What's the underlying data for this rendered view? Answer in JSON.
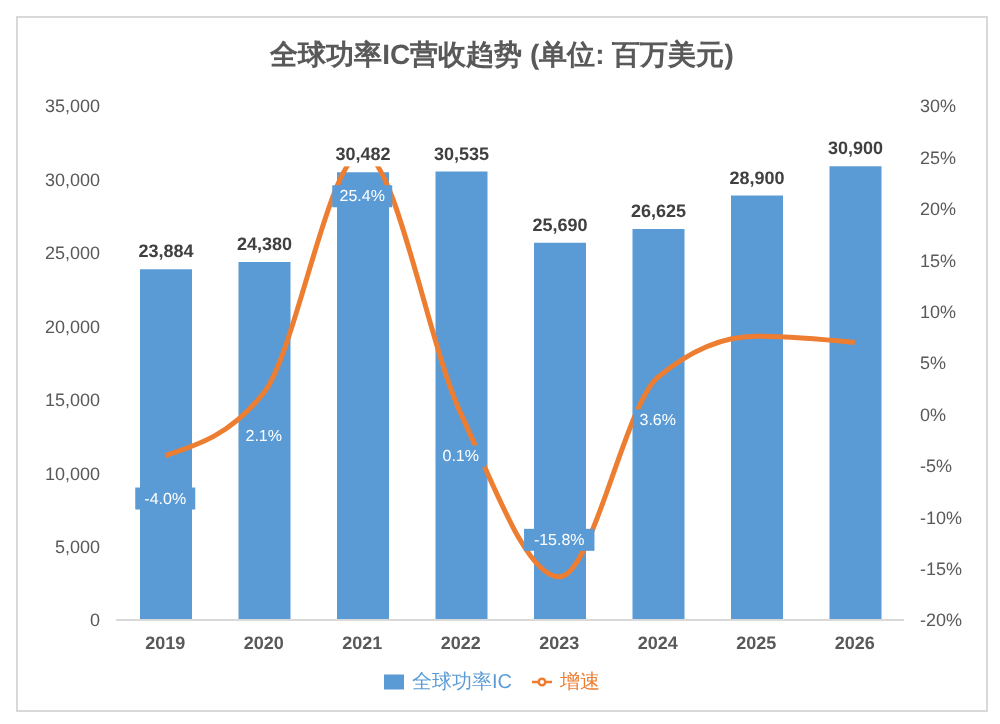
{
  "chart_data": {
    "type": "bar",
    "title": "全球功率IC营收趋势 (单位: 百万美元)",
    "categories": [
      "2019",
      "2020",
      "2021",
      "2022",
      "2023",
      "2024",
      "2025",
      "2026"
    ],
    "series": [
      {
        "name": "全球功率IC",
        "color": "#5b9bd5",
        "values": [
          23884,
          24380,
          30482,
          30535,
          25690,
          26625,
          28900,
          30900
        ],
        "value_labels": [
          "23,884",
          "24,380",
          "30,482",
          "30,535",
          "25,690",
          "26,625",
          "28,900",
          "30,900"
        ]
      },
      {
        "name": "增速",
        "type": "line",
        "axis": "y2",
        "color": "#ed7d31",
        "values": [
          -4.0,
          2.1,
          25.4,
          0.1,
          -15.8,
          3.6,
          7.6,
          7.0
        ],
        "value_labels": [
          "-4.0%",
          "2.1%",
          "25.4%",
          "0.1%",
          "-15.8%",
          "3.6%",
          null,
          null
        ]
      }
    ],
    "ylim": [
      0,
      35000
    ],
    "yticks": [
      0,
      {
        "value": 5000,
        "label": "5,000"
      },
      {
        "value": 10000,
        "label": "10,000"
      },
      {
        "value": 15000,
        "label": "15,000"
      },
      {
        "value": 20000,
        "label": "20,000"
      },
      {
        "value": 25000,
        "label": "25,000"
      },
      {
        "value": 30000,
        "label": "30,000"
      },
      {
        "value": 35000,
        "label": "35,000"
      }
    ],
    "y2lim": [
      -20,
      30
    ],
    "y2ticks": [
      {
        "value": -20,
        "label": "-20%"
      },
      {
        "value": -15,
        "label": "-15%"
      },
      {
        "value": -10,
        "label": "-10%"
      },
      {
        "value": -5,
        "label": "-5%"
      },
      {
        "value": 0,
        "label": "0%"
      },
      {
        "value": 5,
        "label": "5%"
      },
      {
        "value": 10,
        "label": "10%"
      },
      {
        "value": 15,
        "label": "15%"
      },
      {
        "value": 20,
        "label": "20%"
      },
      {
        "value": 25,
        "label": "25%"
      },
      {
        "value": 30,
        "label": "30%"
      }
    ],
    "grid": false,
    "legend": "bottom",
    "marker": "none"
  }
}
